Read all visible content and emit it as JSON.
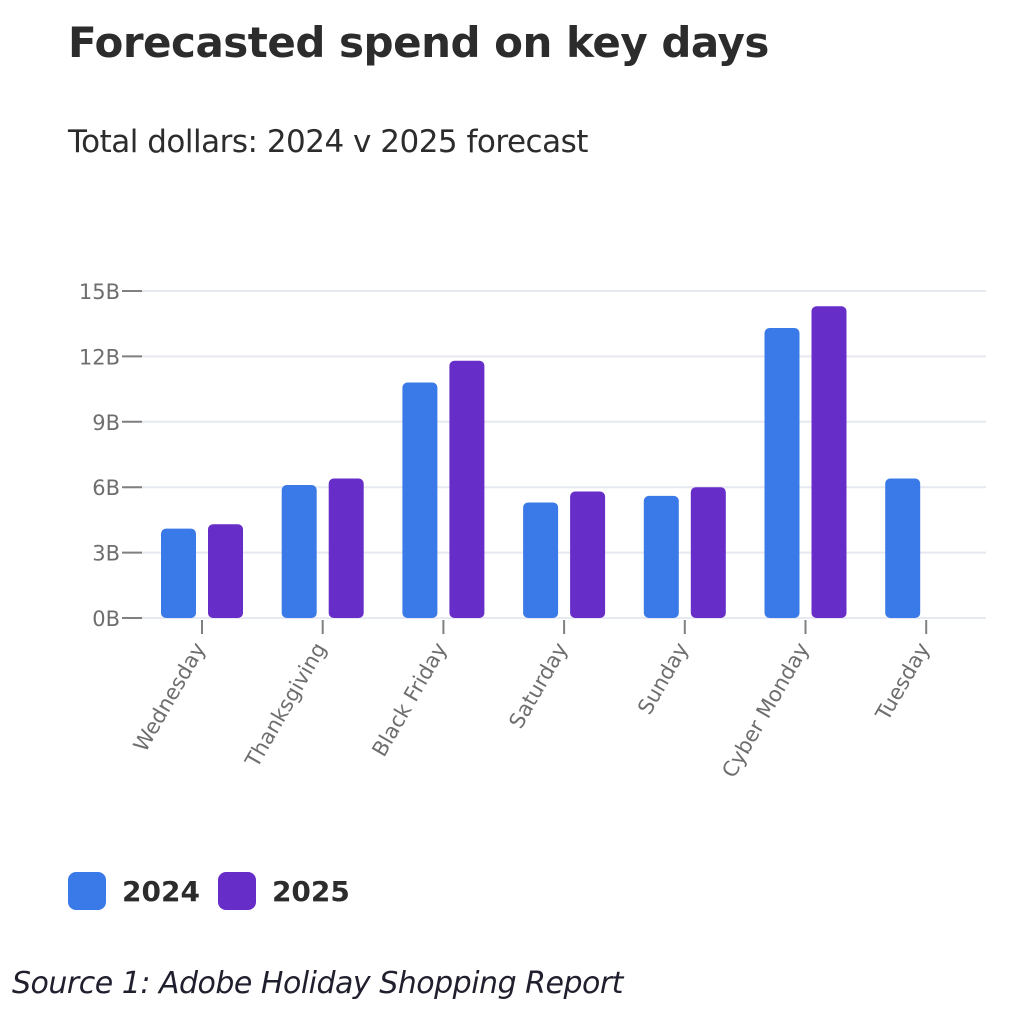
{
  "header": {
    "title": "Forecasted spend on key days",
    "subtitle": "Total dollars: 2024 v 2025 forecast"
  },
  "source": "Source 1: Adobe Holiday Shopping Report",
  "colors": {
    "series_2024": "#3a7ae8",
    "series_2025": "#662dc9",
    "gridline": "#e6e8f2",
    "axis_tick": "#808080"
  },
  "chart_data": {
    "type": "bar",
    "title": "Forecasted spend on key days",
    "subtitle": "Total dollars: 2024 v 2025 forecast",
    "xlabel": "",
    "ylabel": "",
    "categories": [
      "Wednesday",
      "Thanksgiving",
      "Black Friday",
      "Saturday",
      "Sunday",
      "Cyber Monday",
      "Tuesday"
    ],
    "series": [
      {
        "name": "2024",
        "color": "#3a7ae8",
        "values": [
          4.1,
          6.1,
          10.8,
          5.3,
          5.6,
          13.3,
          6.4
        ]
      },
      {
        "name": "2025",
        "color": "#662dc9",
        "values": [
          4.3,
          6.4,
          11.8,
          5.8,
          6.0,
          14.3,
          null
        ]
      }
    ],
    "units": "billions of dollars",
    "ylim": [
      0,
      15
    ],
    "yticks": [
      0,
      3,
      6,
      9,
      12,
      15
    ],
    "ytick_labels": [
      "0B",
      "3B",
      "6B",
      "9B",
      "12B",
      "15B"
    ],
    "grid": true,
    "legend": {
      "position": "bottom-left",
      "entries": [
        "2024",
        "2025"
      ]
    }
  }
}
